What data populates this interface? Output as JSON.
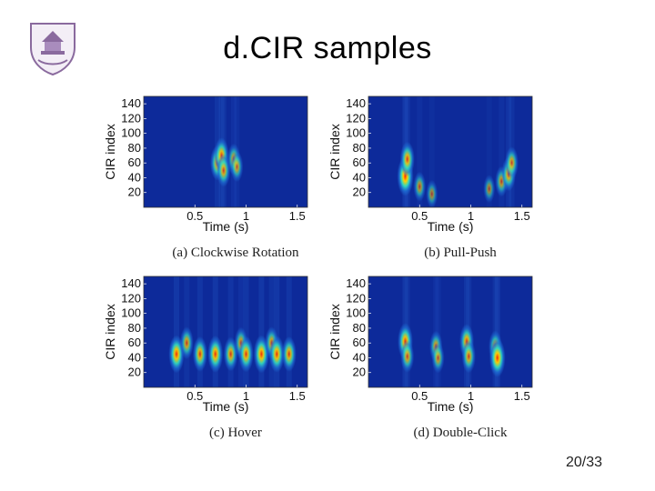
{
  "slide": {
    "title": "d.CIR samples",
    "page": "20/33"
  },
  "chart_data": [
    {
      "type": "heatmap",
      "id": "a",
      "caption": "(a) Clockwise Rotation",
      "xlabel": "Time (s)",
      "ylabel": "CIR index",
      "xlim": [
        0,
        1.6
      ],
      "ylim": [
        0,
        150
      ],
      "xticks": [
        0.5,
        1,
        1.5
      ],
      "xtick_labels": [
        "0.5",
        "1",
        "1.5"
      ],
      "yticks": [
        20,
        40,
        60,
        80,
        100,
        120,
        140
      ],
      "ytick_labels": [
        "20",
        "40",
        "60",
        "80",
        "100",
        "120",
        "140"
      ],
      "blobs": [
        {
          "x": 0.72,
          "y": 60,
          "intensity": 0.75
        },
        {
          "x": 0.76,
          "y": 70,
          "intensity": 0.8
        },
        {
          "x": 0.78,
          "y": 50,
          "intensity": 0.65
        },
        {
          "x": 0.88,
          "y": 65,
          "intensity": 0.55
        },
        {
          "x": 0.91,
          "y": 55,
          "intensity": 0.5
        }
      ]
    },
    {
      "type": "heatmap",
      "id": "b",
      "caption": "(b) Pull-Push",
      "xlabel": "Time (s)",
      "ylabel": "CIR index",
      "xlim": [
        0,
        1.6
      ],
      "ylim": [
        0,
        150
      ],
      "xticks": [
        0.5,
        1,
        1.5
      ],
      "xtick_labels": [
        "0.5",
        "1",
        "1.5"
      ],
      "yticks": [
        20,
        40,
        60,
        80,
        100,
        120,
        140
      ],
      "ytick_labels": [
        "20",
        "40",
        "60",
        "80",
        "100",
        "120",
        "140"
      ],
      "blobs": [
        {
          "x": 0.36,
          "y": 42,
          "intensity": 1.0
        },
        {
          "x": 0.38,
          "y": 65,
          "intensity": 0.75
        },
        {
          "x": 0.5,
          "y": 28,
          "intensity": 0.45
        },
        {
          "x": 0.62,
          "y": 18,
          "intensity": 0.35
        },
        {
          "x": 1.18,
          "y": 25,
          "intensity": 0.35
        },
        {
          "x": 1.3,
          "y": 35,
          "intensity": 0.5
        },
        {
          "x": 1.37,
          "y": 45,
          "intensity": 0.7
        },
        {
          "x": 1.4,
          "y": 60,
          "intensity": 0.6
        }
      ]
    },
    {
      "type": "heatmap",
      "id": "c",
      "caption": "(c) Hover",
      "xlabel": "Time (s)",
      "ylabel": "CIR index",
      "xlim": [
        0,
        1.6
      ],
      "ylim": [
        0,
        150
      ],
      "xticks": [
        0.5,
        1,
        1.5
      ],
      "xtick_labels": [
        "0.5",
        "1",
        "1.5"
      ],
      "yticks": [
        20,
        40,
        60,
        80,
        100,
        120,
        140
      ],
      "ytick_labels": [
        "20",
        "40",
        "60",
        "80",
        "100",
        "120",
        "140"
      ],
      "blobs": [
        {
          "x": 0.32,
          "y": 45,
          "intensity": 0.9
        },
        {
          "x": 0.42,
          "y": 60,
          "intensity": 0.6
        },
        {
          "x": 0.55,
          "y": 45,
          "intensity": 0.75
        },
        {
          "x": 0.7,
          "y": 45,
          "intensity": 0.85
        },
        {
          "x": 0.85,
          "y": 45,
          "intensity": 0.7
        },
        {
          "x": 0.95,
          "y": 60,
          "intensity": 0.55
        },
        {
          "x": 1.0,
          "y": 45,
          "intensity": 0.8
        },
        {
          "x": 1.15,
          "y": 45,
          "intensity": 0.9
        },
        {
          "x": 1.25,
          "y": 60,
          "intensity": 0.6
        },
        {
          "x": 1.3,
          "y": 45,
          "intensity": 0.85
        },
        {
          "x": 1.42,
          "y": 45,
          "intensity": 0.75
        }
      ]
    },
    {
      "type": "heatmap",
      "id": "d",
      "caption": "(d) Double-Click",
      "xlabel": "Time (s)",
      "ylabel": "CIR index",
      "xlim": [
        0,
        1.6
      ],
      "ylim": [
        0,
        150
      ],
      "xticks": [
        0.5,
        1,
        1.5
      ],
      "xtick_labels": [
        "0.5",
        "1",
        "1.5"
      ],
      "yticks": [
        20,
        40,
        60,
        80,
        100,
        120,
        140
      ],
      "ytick_labels": [
        "20",
        "40",
        "60",
        "80",
        "100",
        "120",
        "140"
      ],
      "blobs": [
        {
          "x": 0.36,
          "y": 62,
          "intensity": 0.85
        },
        {
          "x": 0.38,
          "y": 42,
          "intensity": 0.6
        },
        {
          "x": 0.66,
          "y": 55,
          "intensity": 0.55
        },
        {
          "x": 0.68,
          "y": 40,
          "intensity": 0.5
        },
        {
          "x": 0.96,
          "y": 62,
          "intensity": 0.75
        },
        {
          "x": 0.98,
          "y": 42,
          "intensity": 0.65
        },
        {
          "x": 1.24,
          "y": 55,
          "intensity": 0.6
        },
        {
          "x": 1.26,
          "y": 40,
          "intensity": 0.95
        }
      ]
    }
  ]
}
